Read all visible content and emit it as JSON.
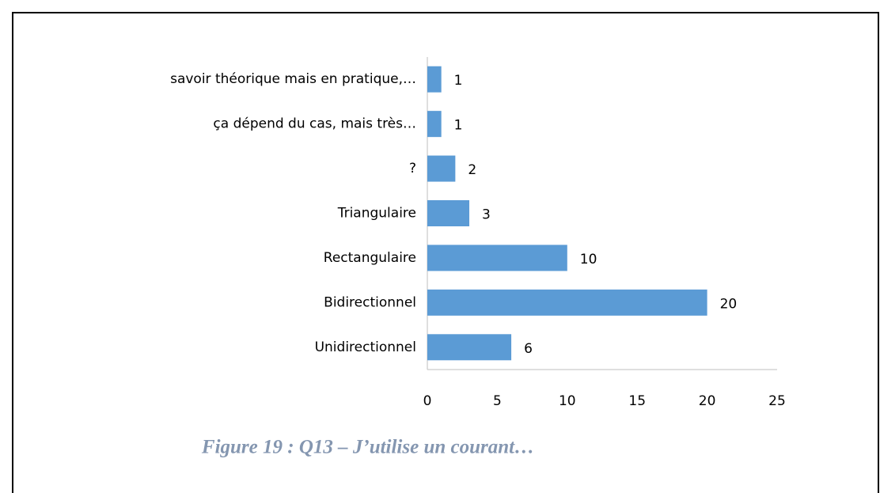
{
  "chart_data": {
    "type": "hbar",
    "categories": [
      "savoir théorique mais en pratique,…",
      "ça dépend du cas, mais très…",
      "?",
      "Triangulaire",
      "Rectangulaire",
      "Bidirectionnel",
      "Unidirectionnel"
    ],
    "values": [
      1,
      1,
      2,
      3,
      10,
      20,
      6
    ],
    "color": "#5b9bd5",
    "xlim": [
      0,
      25
    ],
    "xticks": [
      0,
      5,
      10,
      15,
      20,
      25
    ],
    "caption": "Figure 19 : Q13 – J’utilise un courant…"
  }
}
